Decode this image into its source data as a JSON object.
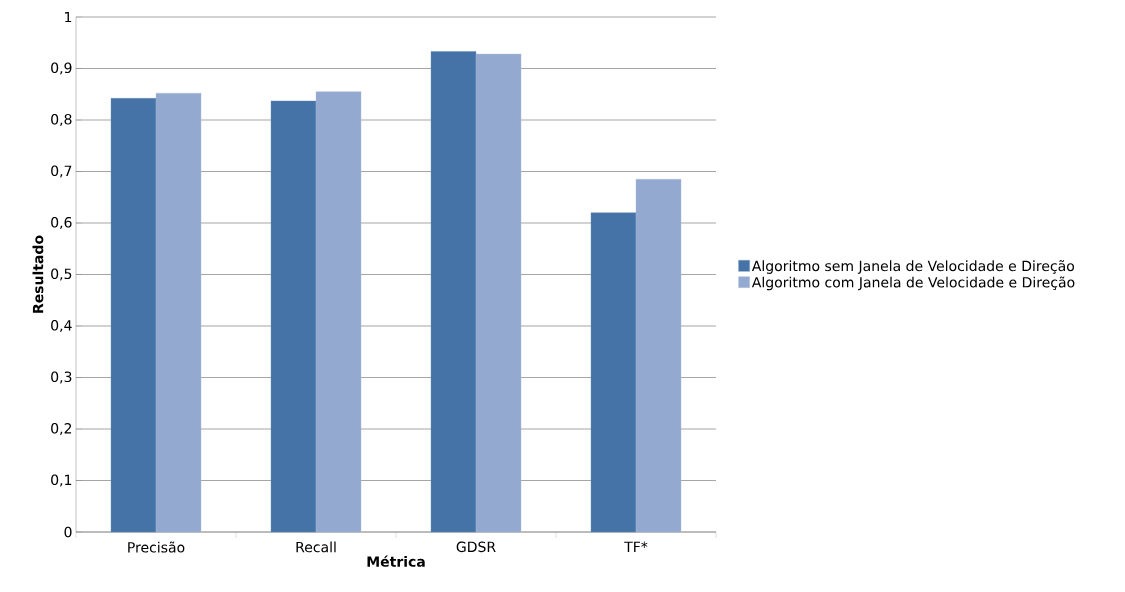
{
  "chart_data": {
    "type": "bar",
    "xlabel": "Métrica",
    "ylabel": "Resultado",
    "categories": [
      "Precisão",
      "Recall",
      "GDSR",
      "TF*"
    ],
    "series": [
      {
        "name": "Algoritmo sem Janela de Velocidade e Direção",
        "color": "#4572a7",
        "values": [
          0.842,
          0.837,
          0.933,
          0.62
        ]
      },
      {
        "name": "Algoritmo com Janela de Velocidade e Direção",
        "color": "#94a9d0",
        "values": [
          0.852,
          0.855,
          0.928,
          0.685
        ]
      }
    ],
    "ylim": [
      0,
      1
    ],
    "yticks": [
      0,
      {
        "value": 0.1,
        "label": "0,1"
      },
      {
        "value": 0.2,
        "label": "0,2"
      },
      {
        "value": 0.3,
        "label": "0,3"
      },
      {
        "value": 0.4,
        "label": "0,4"
      },
      {
        "value": 0.5,
        "label": "0,5"
      },
      {
        "value": 0.6,
        "label": "0,6"
      },
      {
        "value": 0.7,
        "label": "0,7"
      },
      {
        "value": 0.8,
        "label": "0,8"
      },
      {
        "value": 0.9,
        "label": "0,9"
      },
      1
    ],
    "grid": "y",
    "legend": "right"
  }
}
